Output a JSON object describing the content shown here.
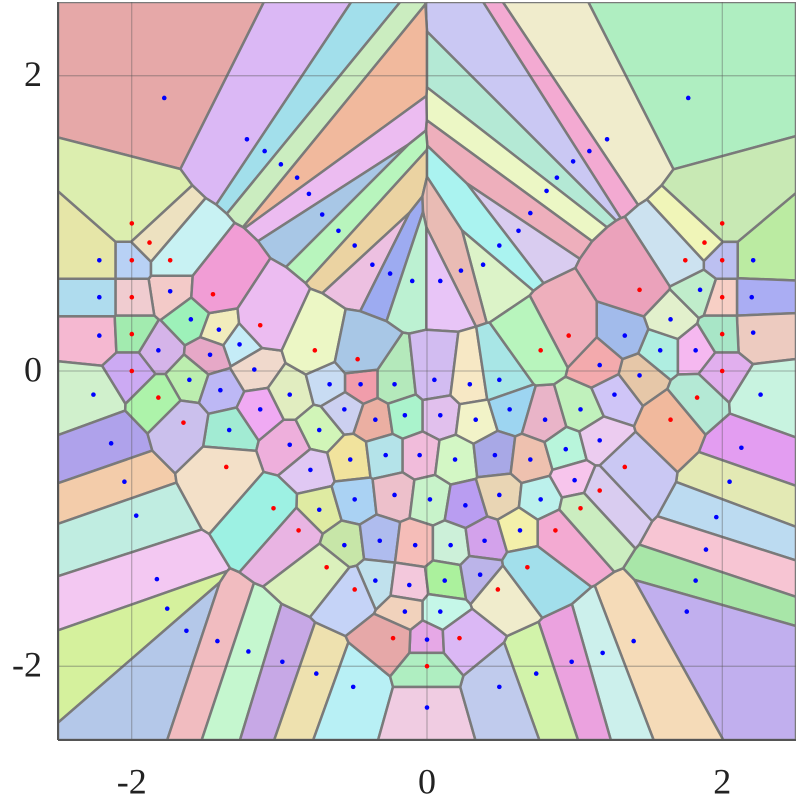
{
  "chart_data": {
    "type": "scatter",
    "xlim": [
      -2.5,
      2.5
    ],
    "ylim": [
      -2.5,
      2.5
    ],
    "xticks": [
      -2,
      0,
      2
    ],
    "yticks": [
      -2,
      0,
      2
    ],
    "grid": true,
    "series": [
      {
        "color": "#0000ff",
        "x": [
          -1.78,
          1.77,
          -1.22,
          1.22,
          -1.1,
          1.1,
          -0.99,
          0.99,
          -0.88,
          0.88,
          -0.8,
          0.81,
          -0.71,
          0.7,
          -0.6,
          0.62,
          -0.49,
          0.49,
          -0.37,
          0.38,
          -0.25,
          0.23,
          -0.1,
          0.09,
          -2.22,
          -2.22,
          -2.22,
          -2.26,
          -2.14,
          -2.05,
          -1.97,
          -1.83,
          -1.76,
          -1.63,
          -1.42,
          -1.21,
          -0.98,
          -0.75,
          -0.5,
          0,
          2.21,
          2.2,
          2.21,
          2.26,
          2.13,
          2.05,
          1.96,
          1.89,
          1.82,
          1.76,
          1.4,
          1.19,
          0.98,
          0.74,
          0.49,
          -1.74,
          -1.6,
          -1.82,
          -1.41,
          -1.27,
          -1.47,
          -1.61,
          -1.4,
          -1.17,
          -1.34,
          -1.13,
          -0.93,
          -0.66,
          -0.45,
          -0.22,
          0.05,
          0.29,
          0.49,
          -0.93,
          -0.73,
          -0.56,
          -0.35,
          -0.15,
          0.09,
          0.33,
          0.56,
          0.8,
          1.04,
          1.27,
          1.44,
          1.58,
          1.82,
          1.65,
          1.34,
          1.17,
          1.85,
          -0.79,
          -0.52,
          -0.28,
          -0.05,
          0.19,
          0.46,
          0.7,
          0.94,
          1.17,
          -0.73,
          -0.49,
          -0.22,
          0.02,
          0.26,
          0.49,
          0.77,
          1.0,
          -0.56,
          -0.32,
          -0.08,
          0.16,
          0.39,
          0.63,
          -0.35,
          -0.12,
          0.12,
          0.36,
          -0.15,
          0.09,
          0
        ],
        "values": [
          1.85,
          1.85,
          1.57,
          1.57,
          1.49,
          1.49,
          1.4,
          1.42,
          1.31,
          1.31,
          1.2,
          1.22,
          1.06,
          1.07,
          0.95,
          0.95,
          0.85,
          0.85,
          0.72,
          0.72,
          0.66,
          0.68,
          0.61,
          0.61,
          0.75,
          0.5,
          0.24,
          -0.16,
          -0.49,
          -0.75,
          -0.98,
          -1.41,
          -1.61,
          -1.76,
          -1.83,
          -1.9,
          -1.97,
          -2.05,
          -2.14,
          -2.28,
          0.75,
          0.5,
          0.26,
          -0.16,
          -0.52,
          -0.75,
          -0.99,
          -1.21,
          -1.42,
          -1.63,
          -1.83,
          -1.91,
          -1.97,
          -2.05,
          -2.14,
          0.54,
          0.35,
          0.14,
          0.28,
          0.18,
          0.11,
          -0.06,
          -0.13,
          0.01,
          -0.4,
          -0.26,
          -0.16,
          -0.09,
          -0.09,
          -0.09,
          -0.06,
          -0.09,
          -0.06,
          -0.5,
          -0.4,
          -0.26,
          -0.33,
          -0.3,
          -0.3,
          -0.33,
          -0.26,
          -0.33,
          -0.26,
          -0.16,
          -0.03,
          0.14,
          0.14,
          0.35,
          0.24,
          0.04,
          0.55,
          -0.67,
          -0.6,
          -0.57,
          -0.57,
          -0.6,
          -0.57,
          -0.6,
          -0.53,
          -0.47,
          -0.94,
          -0.87,
          -0.84,
          -0.87,
          -0.91,
          -0.84,
          -0.87,
          -0.74,
          -1.18,
          -1.15,
          -1.18,
          -1.18,
          -1.15,
          -1.08,
          -1.42,
          -1.45,
          -1.42,
          -1.38,
          -1.63,
          -1.63,
          -1.82
        ]
      },
      {
        "color": "#ff0000",
        "x": [
          -2.0,
          -2.0,
          -2.0,
          -2.0,
          -2.0,
          -1.88,
          -1.74,
          -1.45,
          2.0,
          2.0,
          2.0,
          2.0,
          2.0,
          1.88,
          1.75,
          1.44,
          -1.82,
          -1.65,
          -1.36,
          -1.04,
          -0.87,
          -0.68,
          -0.49,
          -0.23,
          0,
          0.22,
          0.48,
          0.68,
          0.87,
          1.04,
          1.34,
          1.65,
          1.83,
          -1.13,
          -0.76,
          -0.47,
          0.96,
          0.77,
          1.17
        ],
        "values": [
          1.0,
          0.75,
          0.5,
          0.25,
          0,
          0.87,
          0.75,
          0.52,
          1.0,
          0.75,
          0.5,
          0.25,
          0,
          0.87,
          0.75,
          0.55,
          -0.18,
          -0.35,
          -0.65,
          -0.93,
          -1.08,
          -1.33,
          -1.48,
          -1.81,
          -2.0,
          -1.81,
          -1.48,
          -1.33,
          -1.08,
          -0.93,
          -0.65,
          -0.33,
          -0.18,
          0.31,
          0.14,
          0.08,
          0.24,
          0.14,
          -0.81
        ]
      }
    ]
  }
}
